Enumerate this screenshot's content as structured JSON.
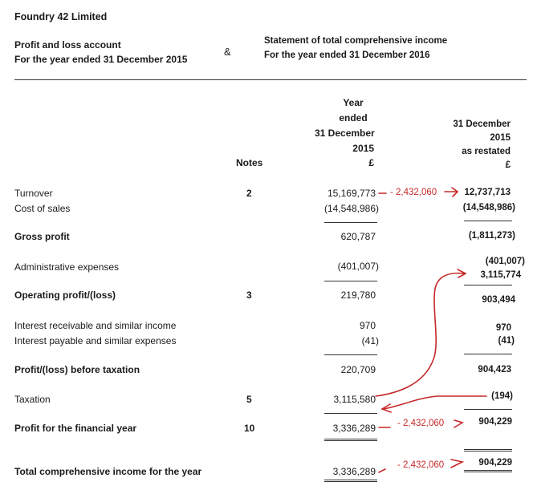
{
  "company": "Foundry 42 Limited",
  "header": {
    "left_line1": "Profit and loss account",
    "left_line2": "For the year ended 31 December 2015",
    "ampersand": "&",
    "right_line1": "Statement of total comprehensive income",
    "right_line2": "For the year ended 31 December 2016"
  },
  "columns": {
    "notes": "Notes",
    "col1": [
      "Year",
      "ended",
      "31 December",
      "2015",
      "£"
    ],
    "col2": [
      "31 December",
      "2015",
      "as restated",
      "£"
    ]
  },
  "rows": [
    {
      "label": "Turnover",
      "note": "2",
      "v1": "15,169,773",
      "v2": "12,737,713"
    },
    {
      "label": "Cost of sales",
      "note": "",
      "v1": "(14,548,986)",
      "v2": "(14,548,986)"
    },
    {
      "label": "Gross profit",
      "note": "",
      "v1": "620,787",
      "v2": "(1,811,273)"
    },
    {
      "label": "Administrative expenses",
      "note": "",
      "v1": "(401,007)",
      "v2": "(401,007)",
      "v2b": "3,115,774"
    },
    {
      "label": "Operating profit/(loss)",
      "note": "3",
      "v1": "219,780",
      "v2": "903,494"
    },
    {
      "label": "Interest receivable and similar income",
      "note": "",
      "v1": "970",
      "v2": "970"
    },
    {
      "label": "Interest payable and similar expenses",
      "note": "",
      "v1": "(41)",
      "v2": "(41)"
    },
    {
      "label": "Profit/(loss) before taxation",
      "note": "",
      "v1": "220,709",
      "v2": "904,423"
    },
    {
      "label": "Taxation",
      "note": "5",
      "v1": "3,115,580",
      "v2": "(194)"
    },
    {
      "label": "Profit for the financial year",
      "note": "10",
      "v1": "3,336,289",
      "v2": "904,229"
    },
    {
      "label": "Total comprehensive income for the year",
      "note": "",
      "v1": "3,336,289",
      "v2": "904,229"
    }
  ],
  "annotations": {
    "adj1": "- 2,432,060",
    "adj2": "- 2,432,060",
    "adj3": "- 2,432,060",
    "color": "#c62828"
  }
}
